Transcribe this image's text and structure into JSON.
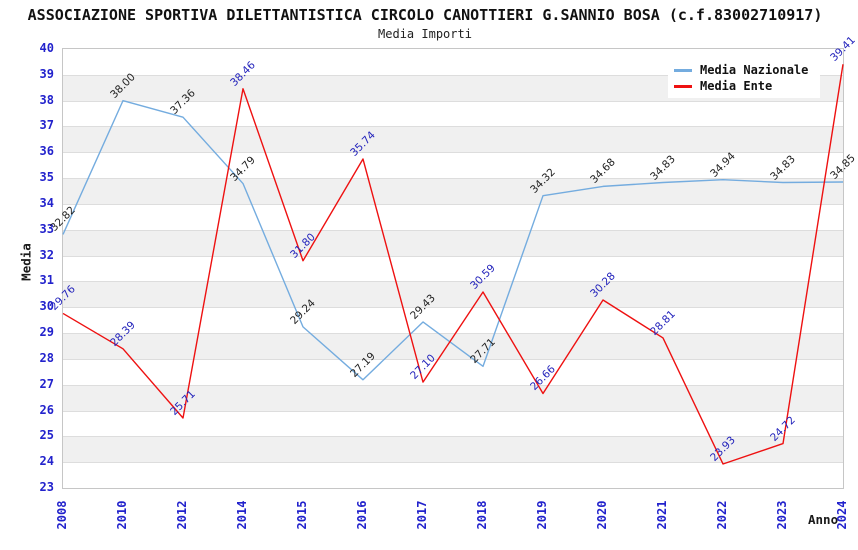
{
  "chart_data": {
    "type": "line",
    "title": "ASSOCIAZIONE SPORTIVA DILETTANTISTICA CIRCOLO CANOTTIERI G.SANNIO BOSA (c.f.83002710917)",
    "subtitle": "Media Importi",
    "xlabel": "Anno",
    "ylabel": "Media",
    "x": [
      "2008",
      "2010",
      "2012",
      "2014",
      "2015",
      "2016",
      "2017",
      "2018",
      "2019",
      "2020",
      "2021",
      "2022",
      "2023",
      "2024"
    ],
    "series": [
      {
        "name": "Media Nazionale",
        "color": "#74ACDF",
        "label_color": "#222222",
        "values": [
          32.82,
          38.0,
          37.36,
          34.79,
          29.24,
          27.19,
          29.43,
          27.71,
          34.32,
          34.68,
          34.83,
          34.94,
          34.83,
          34.85
        ]
      },
      {
        "name": "Media Ente",
        "color": "#EE1111",
        "label_color": "#2222BB",
        "values": [
          29.76,
          28.39,
          25.71,
          38.46,
          31.8,
          35.74,
          27.1,
          30.59,
          26.66,
          30.28,
          28.81,
          23.93,
          24.72,
          39.41
        ]
      }
    ],
    "ylim": [
      23,
      40
    ],
    "y_tick_step": 1,
    "grid": "horizontal-bands",
    "legend_position": "top-right",
    "axis_tick_color": "#2222CC",
    "band_color": "#F0F0F0",
    "gridline_color": "#DDDDDD",
    "plot_border_color": "#C6C6C6"
  }
}
